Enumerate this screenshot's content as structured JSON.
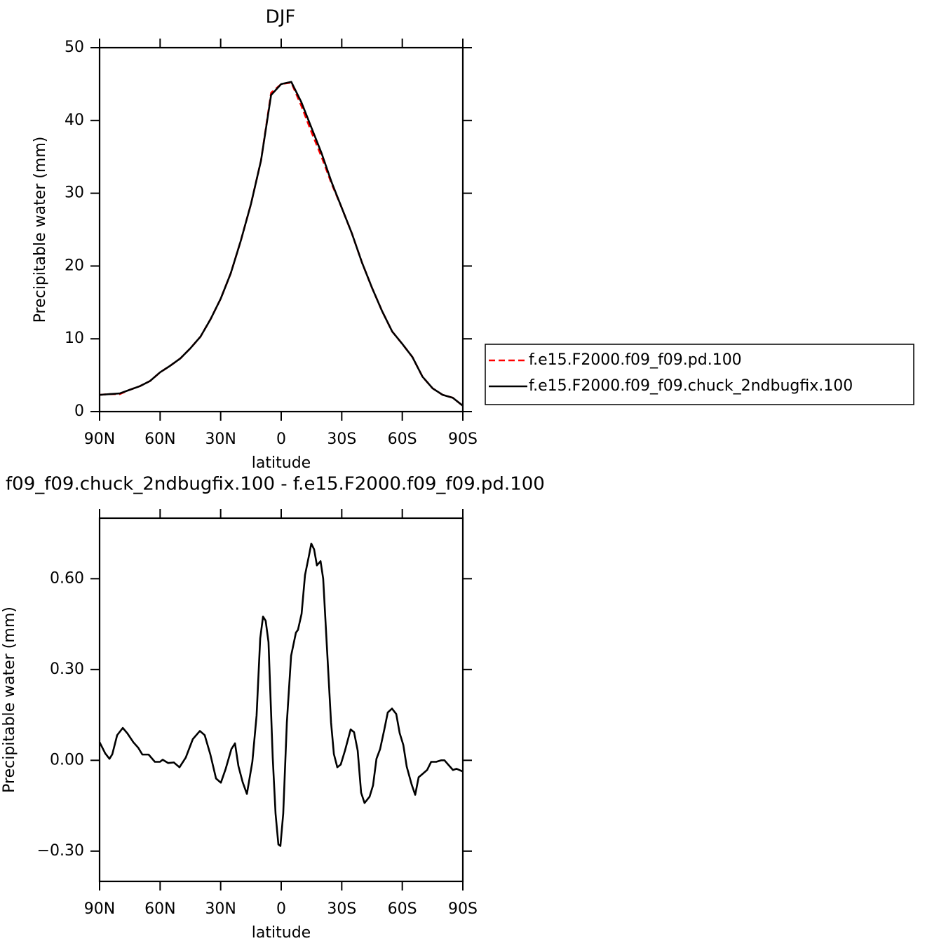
{
  "chart_data": [
    {
      "type": "line",
      "title": "DJF",
      "x_label": "latitude",
      "y_label": "Precipitable water (mm)",
      "x": [
        90,
        85,
        80,
        75,
        70,
        65,
        60,
        55,
        50,
        45,
        40,
        35,
        30,
        25,
        20,
        15,
        10,
        5,
        0,
        -5,
        -10,
        -15,
        -20,
        -25,
        -30,
        -35,
        -40,
        -45,
        -50,
        -55,
        -60,
        -65,
        -70,
        -75,
        -80,
        -85,
        -90
      ],
      "series": [
        {
          "name": "f.e15.F2000.f09_f09.pd.100",
          "color": "#ff0000",
          "dashed": true,
          "values": [
            2.3,
            2.4,
            2.4,
            3.0,
            3.5,
            4.2,
            5.4,
            6.3,
            7.3,
            8.7,
            10.3,
            12.7,
            15.5,
            19,
            23.5,
            28.5,
            34.5,
            43.8,
            45,
            45.2,
            42,
            38.4,
            35,
            31.3,
            28,
            24.5,
            20.5,
            17,
            13.8,
            11,
            9.3,
            7.5,
            4.8,
            3.2,
            2.3,
            1.9,
            0.8
          ]
        },
        {
          "name": "f.e15.F2000.f09_f09.chuck_2ndbugfix.100",
          "color": "#000000",
          "dashed": false,
          "values": [
            2.3,
            2.4,
            2.5,
            3.0,
            3.5,
            4.2,
            5.4,
            6.3,
            7.3,
            8.7,
            10.3,
            12.7,
            15.5,
            19,
            23.5,
            28.5,
            34.5,
            43.5,
            45,
            45.3,
            42.5,
            39,
            35.5,
            31.5,
            28,
            24.5,
            20.5,
            17,
            13.8,
            11,
            9.3,
            7.5,
            4.8,
            3.2,
            2.3,
            1.9,
            0.8
          ]
        }
      ],
      "xlim": [
        90,
        -90
      ],
      "xticks": [
        {
          "value": 90,
          "label": "90N"
        },
        {
          "value": 60,
          "label": "60N"
        },
        {
          "value": 30,
          "label": "30N"
        },
        0,
        {
          "value": -30,
          "label": "30S"
        },
        {
          "value": -60,
          "label": "60S"
        },
        {
          "value": -90,
          "label": "90S"
        }
      ],
      "ylim": [
        0,
        50
      ],
      "yticks": [
        0,
        10,
        20,
        30,
        40,
        50
      ],
      "legend": "right"
    },
    {
      "type": "line",
      "title": "f09_f09.chuck_2ndbugfix.100 - f.e15.F2000.f09_f09.pd.100",
      "x_label": "latitude",
      "y_label": "Precipitable water (mm)",
      "x": [
        90,
        87.2,
        85.1,
        83.7,
        81.3,
        78.5,
        76.1,
        73.3,
        70.9,
        68.8,
        65.7,
        62.6,
        60.1,
        58.7,
        56.0,
        53.2,
        50.4,
        47.3,
        43.8,
        40.3,
        37.9,
        35.1,
        32.3,
        29.9,
        27.5,
        24.7,
        22.9,
        21.2,
        19.1,
        17.0,
        14.3,
        12.2,
        10.4,
        9.0,
        7.7,
        6.3,
        4.2,
        2.8,
        1.4,
        0.4,
        -1.0,
        -2.8,
        -4.9,
        -7.3,
        -8.3,
        -10.1,
        -11.8,
        -13.9,
        -14.9,
        -16.3,
        -17.7,
        -19.5,
        -20.8,
        -22.6,
        -24.7,
        -26.1,
        -27.8,
        -29.5,
        -31.6,
        -34.4,
        -36.1,
        -37.9,
        -39.6,
        -41.3,
        -43.8,
        -45.5,
        -47.2,
        -49.0,
        -51.1,
        -52.8,
        -54.9,
        -57.0,
        -58.7,
        -60.5,
        -62.2,
        -64.6,
        -66.4,
        -68.1,
        -70.2,
        -72.3,
        -74.3,
        -76.8,
        -79.2,
        -80.9,
        -83.0,
        -85.1,
        -86.9,
        -90
      ],
      "values": [
        0.06,
        0.023,
        0.005,
        0.02,
        0.083,
        0.107,
        0.088,
        0.06,
        0.042,
        0.019,
        0.019,
        -0.005,
        -0.005,
        0.002,
        -0.009,
        -0.007,
        -0.023,
        0.009,
        0.07,
        0.097,
        0.083,
        0.019,
        -0.06,
        -0.074,
        -0.028,
        0.037,
        0.056,
        -0.019,
        -0.072,
        -0.111,
        -0.005,
        0.148,
        0.403,
        0.475,
        0.461,
        0.391,
        0.009,
        -0.176,
        -0.278,
        -0.283,
        -0.176,
        0.125,
        0.345,
        0.422,
        0.431,
        0.484,
        0.612,
        0.681,
        0.716,
        0.697,
        0.644,
        0.658,
        0.6,
        0.38,
        0.125,
        0.021,
        -0.023,
        -0.014,
        0.032,
        0.102,
        0.093,
        0.032,
        -0.107,
        -0.141,
        -0.12,
        -0.083,
        0.005,
        0.037,
        0.102,
        0.158,
        0.171,
        0.153,
        0.09,
        0.051,
        -0.021,
        -0.079,
        -0.114,
        -0.056,
        -0.044,
        -0.032,
        -0.005,
        -0.005,
        0,
        0,
        -0.016,
        -0.032,
        -0.028,
        -0.037
      ],
      "color": "#000000",
      "xlim": [
        90,
        -90
      ],
      "xticks": [
        {
          "value": 90,
          "label": "90N"
        },
        {
          "value": 60,
          "label": "60N"
        },
        {
          "value": 30,
          "label": "30N"
        },
        0,
        {
          "value": -30,
          "label": "30S"
        },
        {
          "value": -60,
          "label": "60S"
        },
        {
          "value": -90,
          "label": "90S"
        }
      ],
      "ylim": [
        -0.4,
        0.8
      ],
      "yticks": [
        {
          "value": -0.3,
          "label": "−0.30"
        },
        {
          "value": 0,
          "label": "0.00"
        },
        {
          "value": 0.3,
          "label": "0.30"
        },
        {
          "value": 0.6,
          "label": "0.60"
        }
      ]
    }
  ]
}
